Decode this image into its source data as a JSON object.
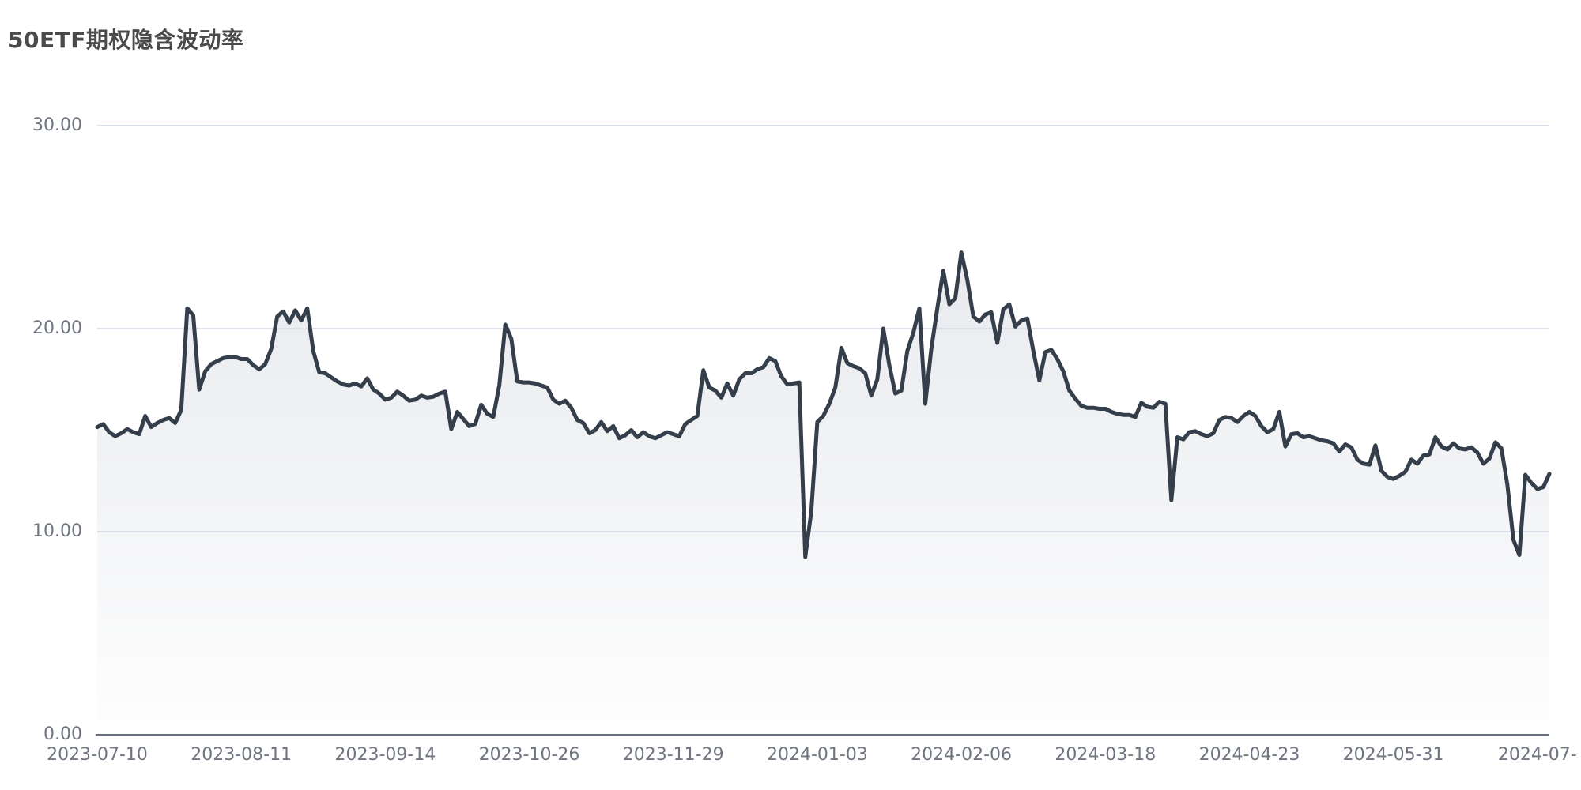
{
  "page": {
    "title": "50ETF期权隐含波动率"
  },
  "chart_data": {
    "type": "area",
    "title": "50ETF期权隐含波动率",
    "xlabel": "",
    "ylabel": "",
    "ylim": [
      0,
      30
    ],
    "grid": true,
    "legend": "none",
    "y_ticks": [
      {
        "value": 30,
        "label": "30.00"
      },
      {
        "value": 20,
        "label": "20.00"
      },
      {
        "value": 10,
        "label": "10.00"
      },
      {
        "value": 0,
        "label": "0.00"
      }
    ],
    "x_ticks": [
      {
        "index": 0,
        "label": "2023-07-10"
      },
      {
        "index": 24,
        "label": "2023-08-11"
      },
      {
        "index": 48,
        "label": "2023-09-14"
      },
      {
        "index": 72,
        "label": "2023-10-26"
      },
      {
        "index": 96,
        "label": "2023-11-29"
      },
      {
        "index": 120,
        "label": "2024-01-03"
      },
      {
        "index": 144,
        "label": "2024-02-06"
      },
      {
        "index": 168,
        "label": "2024-03-18"
      },
      {
        "index": 192,
        "label": "2024-04-23"
      },
      {
        "index": 216,
        "label": "2024-05-31"
      },
      {
        "index": 240,
        "label": "2024-07-"
      }
    ],
    "values": [
      15.15,
      15.3,
      14.9,
      14.7,
      14.85,
      15.05,
      14.9,
      14.8,
      15.7,
      15.15,
      15.35,
      15.5,
      15.6,
      15.35,
      16.0,
      21.0,
      20.65,
      17.0,
      17.9,
      18.25,
      18.4,
      18.55,
      18.6,
      18.6,
      18.5,
      18.5,
      18.2,
      18.0,
      18.25,
      19.0,
      20.6,
      20.85,
      20.3,
      20.9,
      20.4,
      21.0,
      18.9,
      17.85,
      17.8,
      17.6,
      17.4,
      17.25,
      17.2,
      17.3,
      17.15,
      17.55,
      17.0,
      16.8,
      16.5,
      16.6,
      16.9,
      16.7,
      16.45,
      16.5,
      16.7,
      16.6,
      16.65,
      16.8,
      16.9,
      15.05,
      15.9,
      15.55,
      15.2,
      15.3,
      16.25,
      15.8,
      15.65,
      17.2,
      20.2,
      19.5,
      17.4,
      17.35,
      17.35,
      17.3,
      17.2,
      17.1,
      16.5,
      16.3,
      16.45,
      16.1,
      15.5,
      15.35,
      14.85,
      15.0,
      15.4,
      14.95,
      15.2,
      14.6,
      14.75,
      15.0,
      14.65,
      14.9,
      14.7,
      14.6,
      14.75,
      14.9,
      14.8,
      14.7,
      15.3,
      15.5,
      15.7,
      17.95,
      17.1,
      16.95,
      16.6,
      17.3,
      16.7,
      17.5,
      17.8,
      17.8,
      18.0,
      18.1,
      18.55,
      18.4,
      17.65,
      17.25,
      17.3,
      17.35,
      8.75,
      11.0,
      15.4,
      15.7,
      16.3,
      17.1,
      19.05,
      18.3,
      18.15,
      18.05,
      17.8,
      16.7,
      17.5,
      20.0,
      18.2,
      16.8,
      16.95,
      18.9,
      19.8,
      21.0,
      16.3,
      19.0,
      21.0,
      22.85,
      21.2,
      21.5,
      23.75,
      22.4,
      20.6,
      20.35,
      20.7,
      20.8,
      19.3,
      20.95,
      21.2,
      20.1,
      20.4,
      20.5,
      18.9,
      17.45,
      18.85,
      18.95,
      18.5,
      17.9,
      16.95,
      16.55,
      16.2,
      16.1,
      16.1,
      16.05,
      16.05,
      15.9,
      15.8,
      15.75,
      15.75,
      15.65,
      16.35,
      16.15,
      16.1,
      16.4,
      16.3,
      11.55,
      14.65,
      14.55,
      14.9,
      14.95,
      14.8,
      14.7,
      14.85,
      15.5,
      15.65,
      15.6,
      15.4,
      15.7,
      15.9,
      15.7,
      15.2,
      14.9,
      15.05,
      15.9,
      14.2,
      14.8,
      14.85,
      14.65,
      14.7,
      14.6,
      14.5,
      14.45,
      14.35,
      13.95,
      14.3,
      14.15,
      13.55,
      13.35,
      13.3,
      14.25,
      13.0,
      12.7,
      12.6,
      12.75,
      12.95,
      13.55,
      13.35,
      13.75,
      13.8,
      14.65,
      14.2,
      14.05,
      14.35,
      14.1,
      14.05,
      14.15,
      13.9,
      13.35,
      13.6,
      14.4,
      14.1,
      12.3,
      9.6,
      8.85,
      12.8,
      12.4,
      12.1,
      12.2,
      12.85
    ],
    "colors": {
      "line": "#343f4b",
      "area_top": "#e8eaee",
      "area_bottom": "#fefefe",
      "grid_line": "#dce0eb",
      "axis_line": "#646c79",
      "tick_text": "#6f7481",
      "title_text": "#4a4a4a"
    }
  }
}
